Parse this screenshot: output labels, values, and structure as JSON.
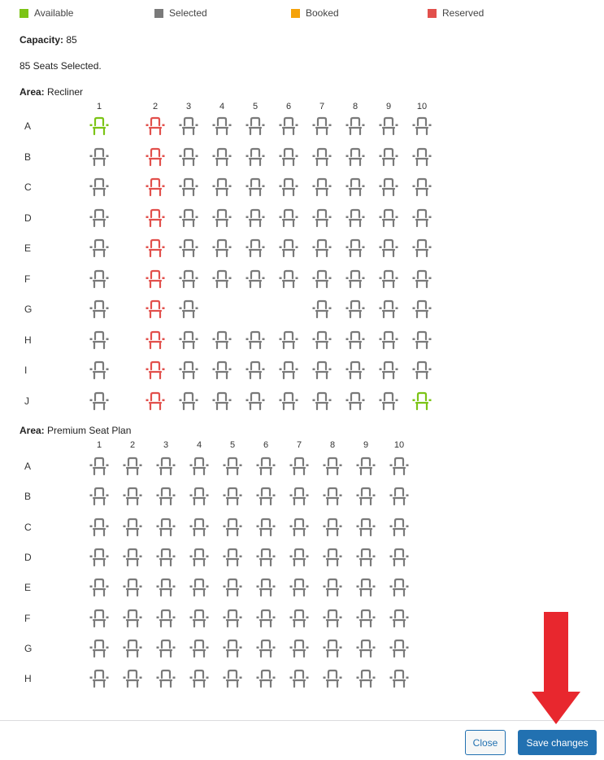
{
  "legend": [
    {
      "label": "Available",
      "color": "#7cc416"
    },
    {
      "label": "Selected",
      "color": "#7a7a7a"
    },
    {
      "label": "Booked",
      "color": "#f5a20a"
    },
    {
      "label": "Reserved",
      "color": "#e2504c"
    }
  ],
  "capacity": {
    "label": "Capacity:",
    "value": "85"
  },
  "selected_text": "85 Seats Selected.",
  "areas": [
    {
      "label": "Area:",
      "name": "Recliner",
      "columns": [
        "1",
        "2",
        "3",
        "4",
        "5",
        "6",
        "7",
        "8",
        "9",
        "10"
      ],
      "rows": [
        {
          "label": "A",
          "seats": [
            "available",
            "reserved",
            "selected",
            "selected",
            "selected",
            "selected",
            "selected",
            "selected",
            "selected",
            "selected"
          ]
        },
        {
          "label": "B",
          "seats": [
            "selected",
            "reserved",
            "selected",
            "selected",
            "selected",
            "selected",
            "selected",
            "selected",
            "selected",
            "selected"
          ]
        },
        {
          "label": "C",
          "seats": [
            "selected",
            "reserved",
            "selected",
            "selected",
            "selected",
            "selected",
            "selected",
            "selected",
            "selected",
            "selected"
          ]
        },
        {
          "label": "D",
          "seats": [
            "selected",
            "reserved",
            "selected",
            "selected",
            "selected",
            "selected",
            "selected",
            "selected",
            "selected",
            "selected"
          ]
        },
        {
          "label": "E",
          "seats": [
            "selected",
            "reserved",
            "selected",
            "selected",
            "selected",
            "selected",
            "selected",
            "selected",
            "selected",
            "selected"
          ]
        },
        {
          "label": "F",
          "seats": [
            "selected",
            "reserved",
            "selected",
            "selected",
            "selected",
            "selected",
            "selected",
            "selected",
            "selected",
            "selected"
          ]
        },
        {
          "label": "G",
          "seats": [
            "selected",
            "reserved",
            "selected",
            "none",
            "none",
            "none",
            "selected",
            "selected",
            "selected",
            "selected"
          ]
        },
        {
          "label": "H",
          "seats": [
            "selected",
            "reserved",
            "selected",
            "selected",
            "selected",
            "selected",
            "selected",
            "selected",
            "selected",
            "selected"
          ]
        },
        {
          "label": "I",
          "seats": [
            "selected",
            "reserved",
            "selected",
            "selected",
            "selected",
            "selected",
            "selected",
            "selected",
            "selected",
            "selected"
          ]
        },
        {
          "label": "J",
          "seats": [
            "selected",
            "reserved",
            "selected",
            "selected",
            "selected",
            "selected",
            "selected",
            "selected",
            "selected",
            "available"
          ]
        }
      ]
    },
    {
      "label": "Area:",
      "name": "Premium Seat Plan",
      "columns": [
        "1",
        "2",
        "3",
        "4",
        "5",
        "6",
        "7",
        "8",
        "9",
        "10"
      ],
      "rows": [
        {
          "label": "A",
          "seats": [
            "selected",
            "selected",
            "selected",
            "selected",
            "selected",
            "selected",
            "selected",
            "selected",
            "selected",
            "selected"
          ]
        },
        {
          "label": "B",
          "seats": [
            "selected",
            "selected",
            "selected",
            "selected",
            "selected",
            "selected",
            "selected",
            "selected",
            "selected",
            "selected"
          ]
        },
        {
          "label": "C",
          "seats": [
            "selected",
            "selected",
            "selected",
            "selected",
            "selected",
            "selected",
            "selected",
            "selected",
            "selected",
            "selected"
          ]
        },
        {
          "label": "D",
          "seats": [
            "selected",
            "selected",
            "selected",
            "selected",
            "selected",
            "selected",
            "selected",
            "selected",
            "selected",
            "selected"
          ]
        },
        {
          "label": "E",
          "seats": [
            "selected",
            "selected",
            "selected",
            "selected",
            "selected",
            "selected",
            "selected",
            "selected",
            "selected",
            "selected"
          ]
        },
        {
          "label": "F",
          "seats": [
            "selected",
            "selected",
            "selected",
            "selected",
            "selected",
            "selected",
            "selected",
            "selected",
            "selected",
            "selected"
          ]
        },
        {
          "label": "G",
          "seats": [
            "selected",
            "selected",
            "selected",
            "selected",
            "selected",
            "selected",
            "selected",
            "selected",
            "selected",
            "selected"
          ]
        },
        {
          "label": "H",
          "seats": [
            "selected",
            "selected",
            "selected",
            "selected",
            "selected",
            "selected",
            "selected",
            "selected",
            "selected",
            "selected"
          ]
        }
      ]
    }
  ],
  "seat_icon": "armchair-icon",
  "arrow_icon": "arrow-down-icon",
  "arrow_color": "#e8272e",
  "footer": {
    "close_label": "Close",
    "save_label": "Save changes"
  }
}
